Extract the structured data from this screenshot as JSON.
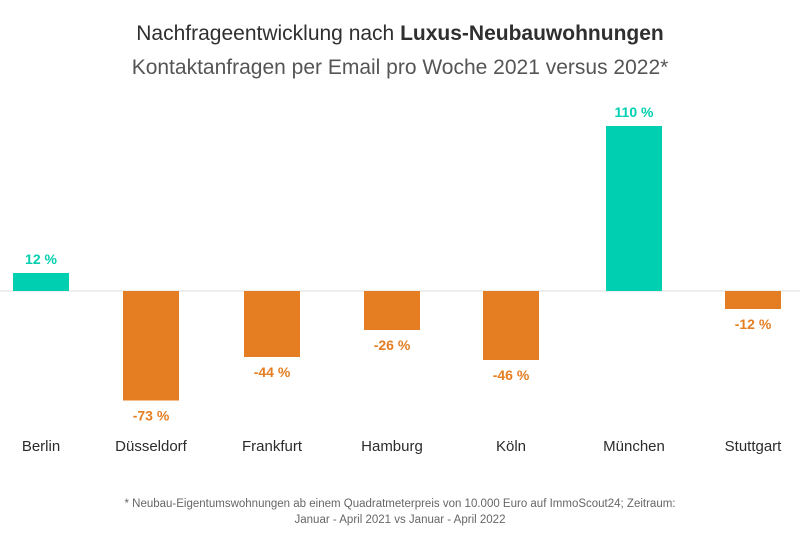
{
  "chart_data": {
    "type": "bar",
    "title_regular": "Nachfrageentwicklung nach ",
    "title_bold": "Luxus-Neubauwohnungen",
    "subtitle": "Kontaktanfragen per Email pro Woche 2021 versus 2022*",
    "categories": [
      "Berlin",
      "Düsseldorf",
      "Frankfurt",
      "Hamburg",
      "Köln",
      "München",
      "Stuttgart"
    ],
    "values": [
      12,
      -73,
      -44,
      -26,
      -46,
      110,
      -12
    ],
    "data_labels": [
      "12 %",
      "-73 %",
      "-44 %",
      "-26 %",
      "-46 %",
      "110 %",
      "-12 %"
    ],
    "unit": "%",
    "ylim": [
      -80,
      110
    ],
    "grid": false,
    "legend": "none",
    "colors": {
      "positive": "#00CFB1",
      "negative": "#E57E22",
      "axis": "#dddddd",
      "category_text": "#2b2b2b"
    }
  },
  "footnote": {
    "line1": "* Neubau-Eigentumswohnungen ab einem Quadratmeterpreis von 10.000 Euro auf ImmoScout24; Zeitraum:",
    "line2": "Januar - April 2021 vs Januar - April 2022"
  }
}
